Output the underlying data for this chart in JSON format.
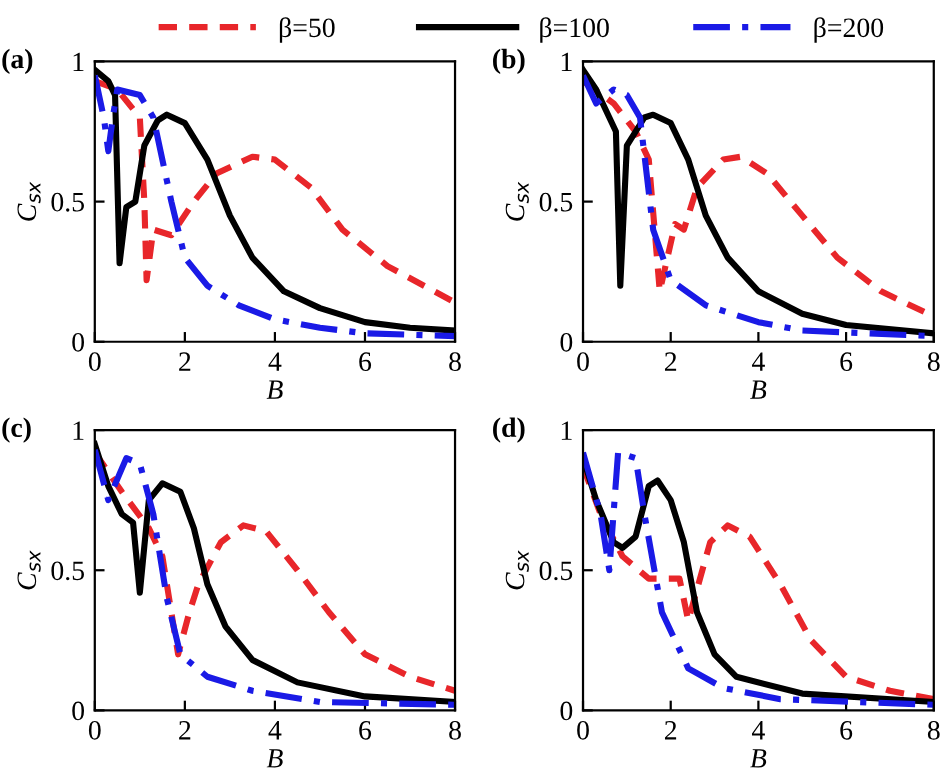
{
  "chart_data": [
    {
      "type": "line",
      "title": "(a)",
      "xlabel": "B",
      "ylabel": "C$_{sx}$",
      "xlim": [
        0,
        8
      ],
      "ylim": [
        0,
        1
      ],
      "xticks": [
        0,
        2,
        4,
        6,
        8
      ],
      "yticks": [
        0,
        0.5,
        1
      ],
      "grid": false,
      "legend": "top",
      "series": [
        {
          "name": "β=50",
          "color": "#e8262a",
          "line_style": "dashed",
          "x": [
            0,
            0.5,
            1.0,
            1.1,
            1.15,
            1.3,
            1.7,
            2.2,
            2.7,
            3.5,
            4.0,
            4.8,
            5.5,
            6.5,
            8
          ],
          "values": [
            0.93,
            0.9,
            0.8,
            0.5,
            0.22,
            0.4,
            0.38,
            0.5,
            0.6,
            0.66,
            0.65,
            0.55,
            0.4,
            0.27,
            0.14
          ]
        },
        {
          "name": "β=100",
          "color": "#000000",
          "line_style": "solid",
          "x": [
            0,
            0.3,
            0.45,
            0.55,
            0.7,
            0.9,
            1.1,
            1.4,
            1.6,
            2.0,
            2.5,
            3.0,
            3.5,
            4.2,
            5,
            6,
            7,
            8
          ],
          "values": [
            0.97,
            0.93,
            0.88,
            0.28,
            0.48,
            0.5,
            0.7,
            0.79,
            0.81,
            0.78,
            0.65,
            0.45,
            0.3,
            0.18,
            0.12,
            0.07,
            0.05,
            0.04
          ]
        },
        {
          "name": "β=200",
          "color": "#1a1ae6",
          "line_style": "dashdot",
          "x": [
            0,
            0.2,
            0.3,
            0.4,
            0.5,
            1.0,
            1.3,
            1.7,
            2.0,
            2.5,
            3.2,
            4.0,
            5,
            6,
            8
          ],
          "values": [
            0.95,
            0.8,
            0.68,
            0.8,
            0.9,
            0.88,
            0.8,
            0.5,
            0.3,
            0.2,
            0.13,
            0.08,
            0.05,
            0.03,
            0.02
          ]
        }
      ]
    },
    {
      "type": "line",
      "title": "(b)",
      "xlabel": "B",
      "ylabel": "C$_{sx}$",
      "xlim": [
        0,
        8
      ],
      "ylim": [
        0,
        1
      ],
      "xticks": [
        0,
        2,
        4,
        6,
        8
      ],
      "yticks": [
        0,
        0.5,
        1
      ],
      "grid": false,
      "series": [
        {
          "color": "#e8262a",
          "line_style": "dashed",
          "x": [
            0,
            0.7,
            1.2,
            1.5,
            1.75,
            2.1,
            2.3,
            2.6,
            3.2,
            3.6,
            4.2,
            5,
            5.8,
            6.8,
            8
          ],
          "values": [
            0.93,
            0.85,
            0.75,
            0.65,
            0.18,
            0.42,
            0.4,
            0.55,
            0.65,
            0.66,
            0.6,
            0.45,
            0.3,
            0.18,
            0.09
          ]
        },
        {
          "color": "#000000",
          "line_style": "solid",
          "x": [
            0,
            0.3,
            0.6,
            0.75,
            0.85,
            1.0,
            1.4,
            1.6,
            2.0,
            2.4,
            2.8,
            3.3,
            4,
            5,
            6,
            8
          ],
          "values": [
            0.97,
            0.9,
            0.8,
            0.75,
            0.2,
            0.7,
            0.8,
            0.81,
            0.78,
            0.65,
            0.45,
            0.3,
            0.18,
            0.1,
            0.06,
            0.03
          ]
        },
        {
          "color": "#1a1ae6",
          "line_style": "dashdot",
          "x": [
            0,
            0.3,
            0.7,
            1.0,
            1.3,
            1.6,
            2.0,
            2.8,
            4,
            5,
            8
          ],
          "values": [
            0.95,
            0.85,
            0.9,
            0.88,
            0.8,
            0.4,
            0.22,
            0.13,
            0.07,
            0.04,
            0.02
          ]
        }
      ]
    },
    {
      "type": "line",
      "title": "(c)",
      "xlabel": "B",
      "ylabel": "C$_{sx}$",
      "xlim": [
        0,
        8
      ],
      "ylim": [
        0,
        1
      ],
      "xticks": [
        0,
        2,
        4,
        6,
        8
      ],
      "yticks": [
        0,
        0.5,
        1
      ],
      "grid": false,
      "series": [
        {
          "color": "#e8262a",
          "line_style": "dashed",
          "x": [
            0,
            0.6,
            1.2,
            1.5,
            1.85,
            2.1,
            2.3,
            2.8,
            3.3,
            3.8,
            4.5,
            5.2,
            6,
            7,
            8
          ],
          "values": [
            0.92,
            0.78,
            0.65,
            0.55,
            0.2,
            0.35,
            0.45,
            0.6,
            0.66,
            0.64,
            0.5,
            0.35,
            0.2,
            0.12,
            0.07
          ]
        },
        {
          "color": "#000000",
          "line_style": "solid",
          "x": [
            0,
            0.3,
            0.6,
            0.85,
            1.0,
            1.2,
            1.5,
            1.9,
            2.2,
            2.5,
            2.9,
            3.5,
            4.5,
            6,
            8
          ],
          "values": [
            0.95,
            0.8,
            0.7,
            0.67,
            0.42,
            0.75,
            0.81,
            0.78,
            0.65,
            0.45,
            0.3,
            0.18,
            0.1,
            0.05,
            0.03
          ]
        },
        {
          "color": "#1a1ae6",
          "line_style": "dashdot",
          "x": [
            0,
            0.3,
            0.7,
            1.0,
            1.3,
            1.6,
            1.9,
            2.5,
            3.5,
            5,
            8
          ],
          "values": [
            0.93,
            0.75,
            0.9,
            0.88,
            0.7,
            0.4,
            0.2,
            0.12,
            0.07,
            0.03,
            0.02
          ]
        }
      ]
    },
    {
      "type": "line",
      "title": "(d)",
      "xlabel": "B",
      "ylabel": "C$_{sx}$",
      "xlim": [
        0,
        8
      ],
      "ylim": [
        0,
        1
      ],
      "xticks": [
        0,
        2,
        4,
        6,
        8
      ],
      "yticks": [
        0,
        0.5,
        1
      ],
      "grid": false,
      "series": [
        {
          "color": "#e8262a",
          "line_style": "dashed",
          "x": [
            0,
            0.4,
            0.9,
            1.5,
            2.2,
            2.4,
            2.9,
            3.3,
            3.8,
            4.5,
            5.2,
            6,
            7,
            8
          ],
          "values": [
            0.87,
            0.7,
            0.55,
            0.47,
            0.47,
            0.32,
            0.6,
            0.66,
            0.62,
            0.45,
            0.25,
            0.12,
            0.07,
            0.04
          ]
        },
        {
          "color": "#000000",
          "line_style": "solid",
          "x": [
            0,
            0.3,
            0.7,
            0.9,
            1.2,
            1.5,
            1.7,
            2.0,
            2.3,
            2.6,
            3.0,
            3.5,
            5,
            8
          ],
          "values": [
            0.9,
            0.75,
            0.6,
            0.58,
            0.62,
            0.8,
            0.82,
            0.75,
            0.6,
            0.35,
            0.2,
            0.12,
            0.06,
            0.03
          ]
        },
        {
          "color": "#1a1ae6",
          "line_style": "dashdot",
          "x": [
            0,
            0.4,
            0.6,
            0.8,
            1.2,
            1.4,
            1.8,
            2.4,
            3.2,
            4.5,
            8
          ],
          "values": [
            0.92,
            0.7,
            0.5,
            0.92,
            0.9,
            0.7,
            0.35,
            0.15,
            0.08,
            0.04,
            0.02
          ]
        }
      ]
    }
  ]
}
